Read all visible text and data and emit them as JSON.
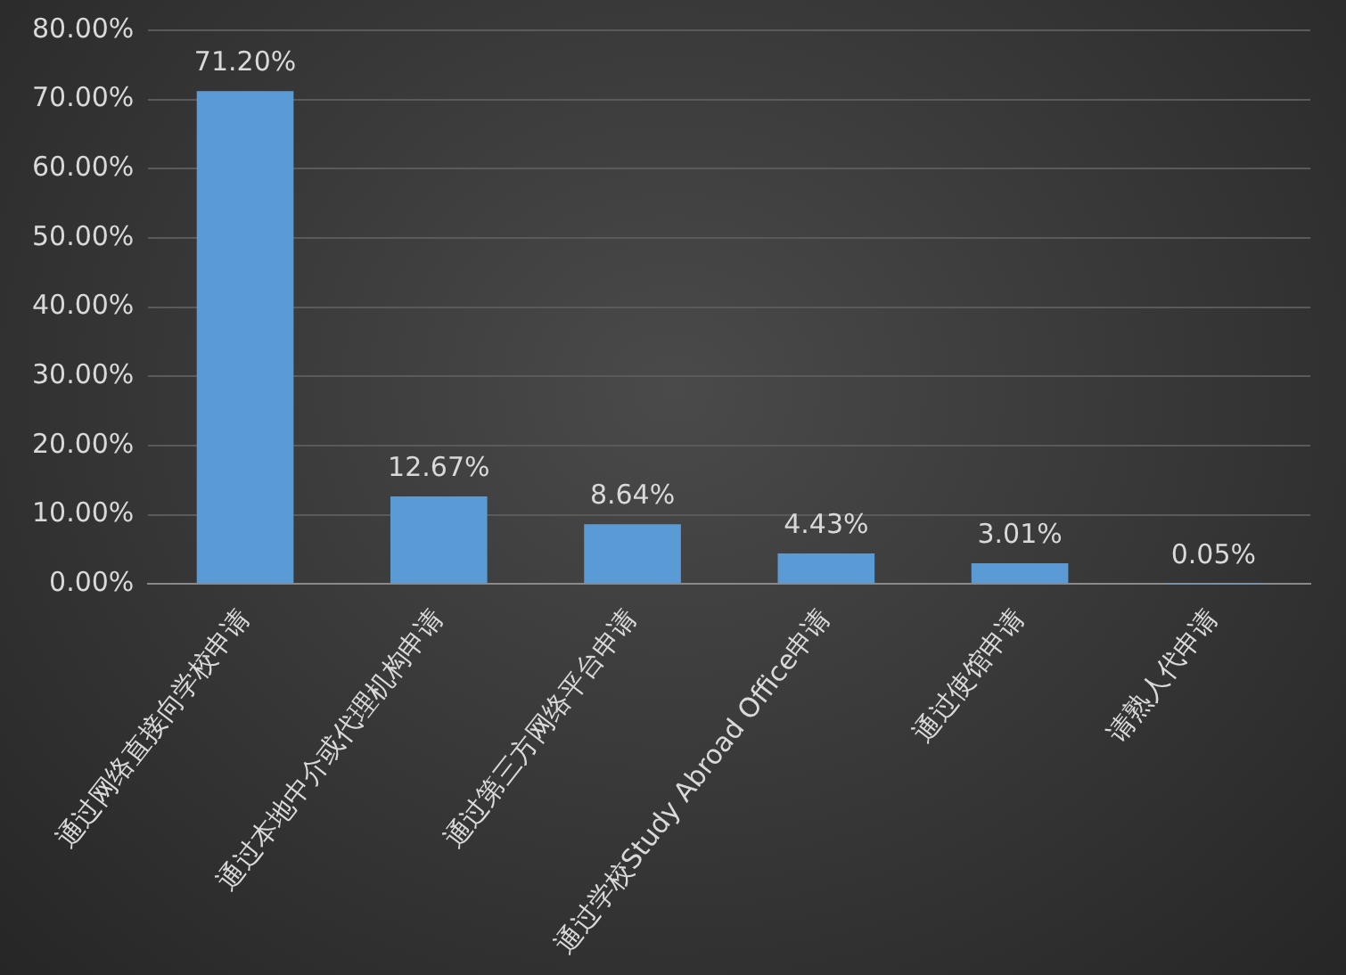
{
  "chart_data": {
    "type": "bar",
    "categories": [
      "通过网络直接向学校申请",
      "通过本地中介或代理机构申请",
      "通过第三方网络平台申请",
      "通过学校Study Abroad Office申请",
      "通过使馆申请",
      "请熟人代申请"
    ],
    "values": [
      71.2,
      12.67,
      8.64,
      4.43,
      3.01,
      0.05
    ],
    "value_labels": [
      "71.20%",
      "12.67%",
      "8.64%",
      "4.43%",
      "3.01%",
      "0.05%"
    ],
    "color": "#5b9bd5",
    "ylim": [
      0,
      80
    ],
    "yticks": [
      {
        "value": 0,
        "label": "0.00%"
      },
      {
        "value": 10,
        "label": "10.00%"
      },
      {
        "value": 20,
        "label": "20.00%"
      },
      {
        "value": 30,
        "label": "30.00%"
      },
      {
        "value": 40,
        "label": "40.00%"
      },
      {
        "value": 50,
        "label": "50.00%"
      },
      {
        "value": 60,
        "label": "60.00%"
      },
      {
        "value": 70,
        "label": "70.00%"
      },
      {
        "value": 80,
        "label": "80.00%"
      }
    ],
    "grid": "y",
    "legend": false
  }
}
